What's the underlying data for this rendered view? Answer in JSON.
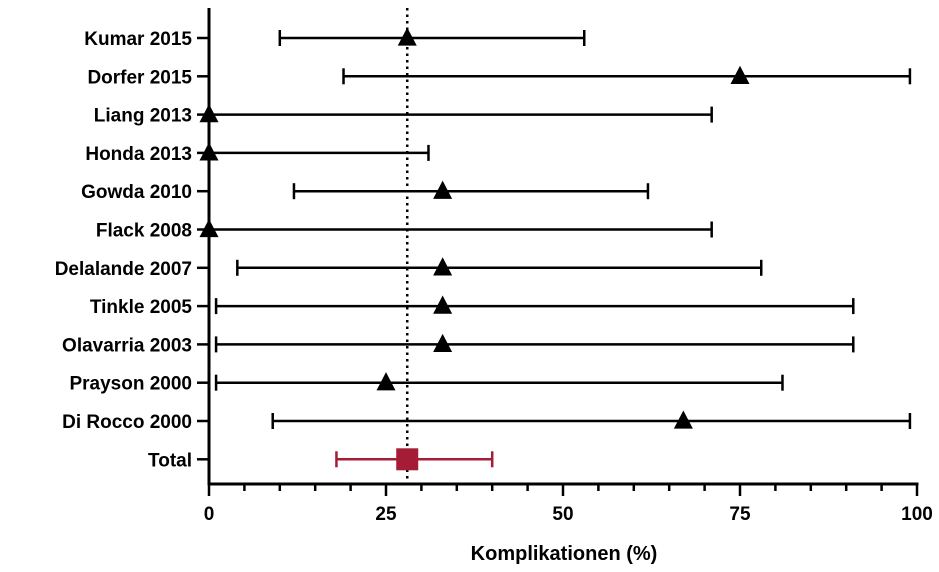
{
  "chart_data": {
    "type": "forest",
    "title": "",
    "xlabel": "Komplikationen (%)",
    "ylabel": "",
    "xlim": [
      0,
      100
    ],
    "xticks": [
      0,
      25,
      50,
      75,
      100
    ],
    "xtick_labels": [
      "0",
      "25",
      "50",
      "75",
      "100"
    ],
    "reference_line": 28,
    "categories": [
      "Kumar 2015",
      "Dorfer 2015",
      "Liang 2013",
      "Honda 2013",
      "Gowda 2010",
      "Flack 2008",
      "Delalande 2007",
      "Tinkle 2005",
      "Olavarria 2003",
      "Prayson 2000",
      "Di Rocco 2000",
      "Total"
    ],
    "series": [
      {
        "estimate": [
          28,
          75,
          0,
          0,
          33,
          0,
          33,
          33,
          33,
          25,
          67
        ],
        "lower": [
          10,
          19,
          0,
          0,
          12,
          0,
          4,
          1,
          1,
          1,
          9
        ],
        "upper": [
          53,
          99,
          71,
          31,
          62,
          71,
          78,
          91,
          91,
          81,
          99
        ],
        "marker": "triangle",
        "color": "#000000"
      },
      {
        "estimate": [
          28
        ],
        "lower": [
          18
        ],
        "upper": [
          40
        ],
        "marker": "square",
        "color": "#a51c36",
        "category_index": 11
      }
    ]
  }
}
